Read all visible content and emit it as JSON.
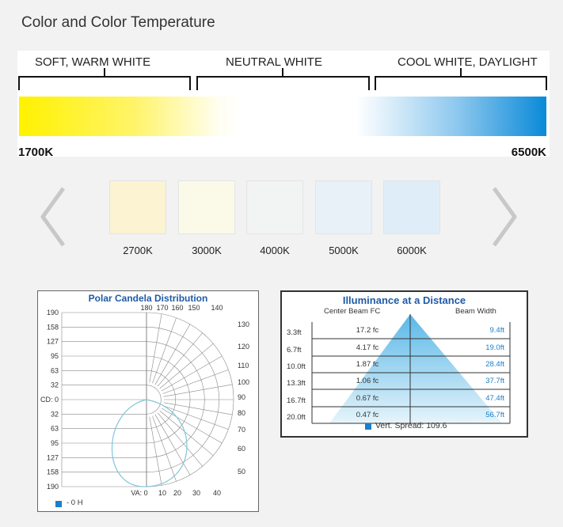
{
  "title": "Color and Color Temperature",
  "temperature_scale": {
    "ranges": [
      "SOFT, WARM WHITE",
      "NEUTRAL WHITE",
      "COOL WHITE, DAYLIGHT"
    ],
    "min_label": "1700K",
    "max_label": "6500K"
  },
  "swatches": [
    {
      "label": "2700K",
      "color": "#fbf3d2"
    },
    {
      "label": "3000K",
      "color": "#fbf9e8"
    },
    {
      "label": "4000K",
      "color": "#f1f4f3"
    },
    {
      "label": "5000K",
      "color": "#e8f0f8"
    },
    {
      "label": "6000K",
      "color": "#deedf7"
    }
  ],
  "polar_chart": {
    "title": "Polar Candela Distribution",
    "cd_labels": [
      "190",
      "158",
      "127",
      "95",
      "63",
      "32",
      "CD: 0",
      "32",
      "63",
      "95",
      "127",
      "158",
      "190"
    ],
    "top_angle_labels": [
      "180",
      "170",
      "160",
      "150",
      "140"
    ],
    "right_angle_labels": [
      "130",
      "120",
      "110",
      "100",
      "90",
      "80",
      "70",
      "60",
      "50"
    ],
    "bottom_angle_labels": [
      "VA: 0",
      "10",
      "20",
      "30",
      "40"
    ],
    "legend": "- 0 H",
    "legend_color": "#2b8fd8",
    "curve_color": "#7fc6d6"
  },
  "illuminance": {
    "title": "Illuminance at a Distance",
    "col_center": "Center Beam FC",
    "col_width": "Beam Width",
    "rows": [
      {
        "distance": "3.3ft",
        "fc": "17.2 fc",
        "width": "9.4ft"
      },
      {
        "distance": "6.7ft",
        "fc": "4.17 fc",
        "width": "19.0ft"
      },
      {
        "distance": "10.0ft",
        "fc": "1.87 fc",
        "width": "28.4ft"
      },
      {
        "distance": "13.3ft",
        "fc": "1.06 fc",
        "width": "37.7ft"
      },
      {
        "distance": "16.7ft",
        "fc": "0.67 fc",
        "width": "47.4ft"
      },
      {
        "distance": "20.0ft",
        "fc": "0.47 fc",
        "width": "56.7ft"
      }
    ],
    "spread_label": "Vert. Spread: 109.6",
    "accent": "#1b7fc9"
  }
}
